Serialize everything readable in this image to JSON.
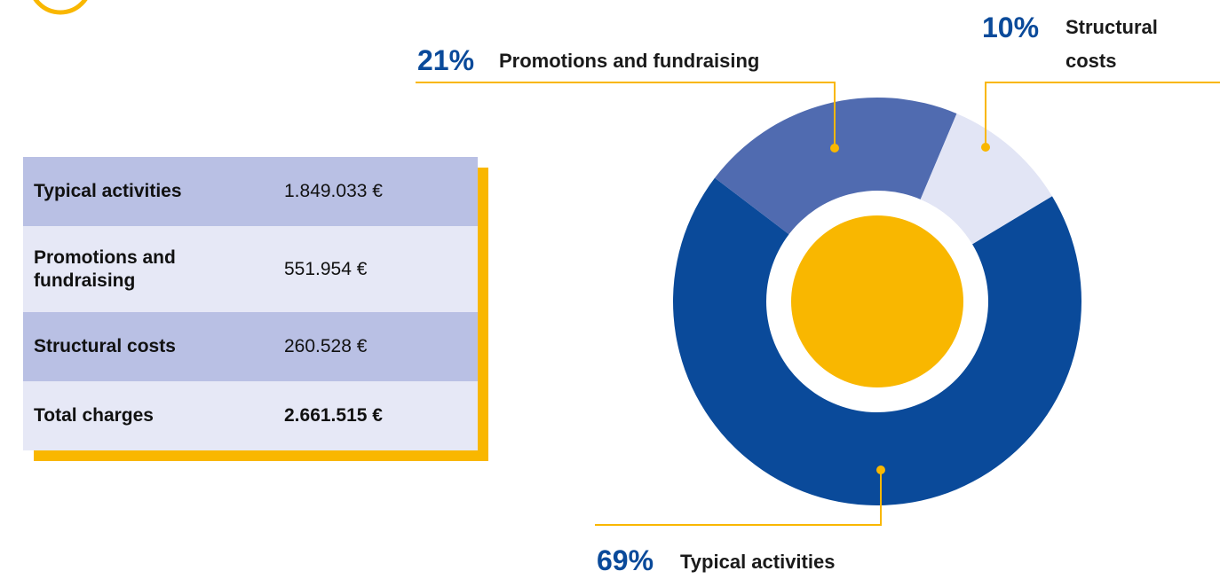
{
  "table": {
    "rows": [
      [
        "Typical activities",
        "1.849.033 €"
      ],
      [
        "Promotions and fundraising",
        "551.954 €"
      ],
      [
        "Structural costs",
        "260.528 €"
      ],
      [
        "Total charges",
        "2.661.515 €"
      ]
    ]
  },
  "chart_data": {
    "type": "pie",
    "categories": [
      "Typical activities",
      "Promotions and fundraising",
      "Structural costs"
    ],
    "values": [
      69,
      21,
      10
    ],
    "value_labels": [
      "69%",
      "21%",
      "10%"
    ],
    "colors": [
      "#0a4a9a",
      "#506bb0",
      "#e2e5f5"
    ]
  }
}
